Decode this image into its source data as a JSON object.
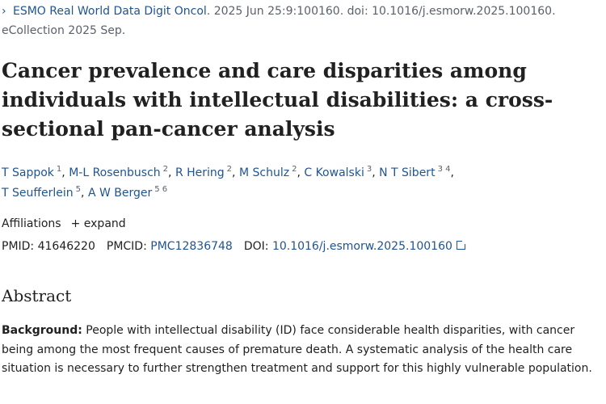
{
  "citation": {
    "journal": "ESMO Real World Data Digit Oncol",
    "details": ". 2025 Jun 25:9:100160. doi: 10.1016/j.esmorw.2025.100160. eCollection 2025 Sep."
  },
  "title": "Cancer prevalence and care disparities among individuals with intellectual disabilities: a cross-sectional pan-cancer analysis",
  "authors": [
    {
      "name": "T Sappok",
      "aff": "1"
    },
    {
      "name": "M-L Rosenbusch",
      "aff": "2"
    },
    {
      "name": "R Hering",
      "aff": "2"
    },
    {
      "name": "M Schulz",
      "aff": "2"
    },
    {
      "name": "C Kowalski",
      "aff": "3"
    },
    {
      "name": "N T Sibert",
      "aff": "3 4"
    },
    {
      "name": "T Seufferlein",
      "aff": "5"
    },
    {
      "name": "A W Berger",
      "aff": "5 6"
    }
  ],
  "affiliations": {
    "label": "Affiliations",
    "expand": "expand"
  },
  "ids": {
    "pmid_label": "PMID:",
    "pmid": "41646220",
    "pmcid_label": "PMCID:",
    "pmcid": "PMC12836748",
    "doi_label": "DOI:",
    "doi": "10.1016/j.esmorw.2025.100160"
  },
  "abstract": {
    "heading": "Abstract",
    "background_label": "Background:",
    "background_text": " People with intellectual disability (ID) face considerable health disparities, with cancer being among the most frequent causes of premature death. A systematic analysis of the health care situation is necessary to further strengthen treatment and support for this highly vulnerable population."
  },
  "colors": {
    "link": "#205493",
    "text": "#212121",
    "muted": "#5b616b"
  }
}
